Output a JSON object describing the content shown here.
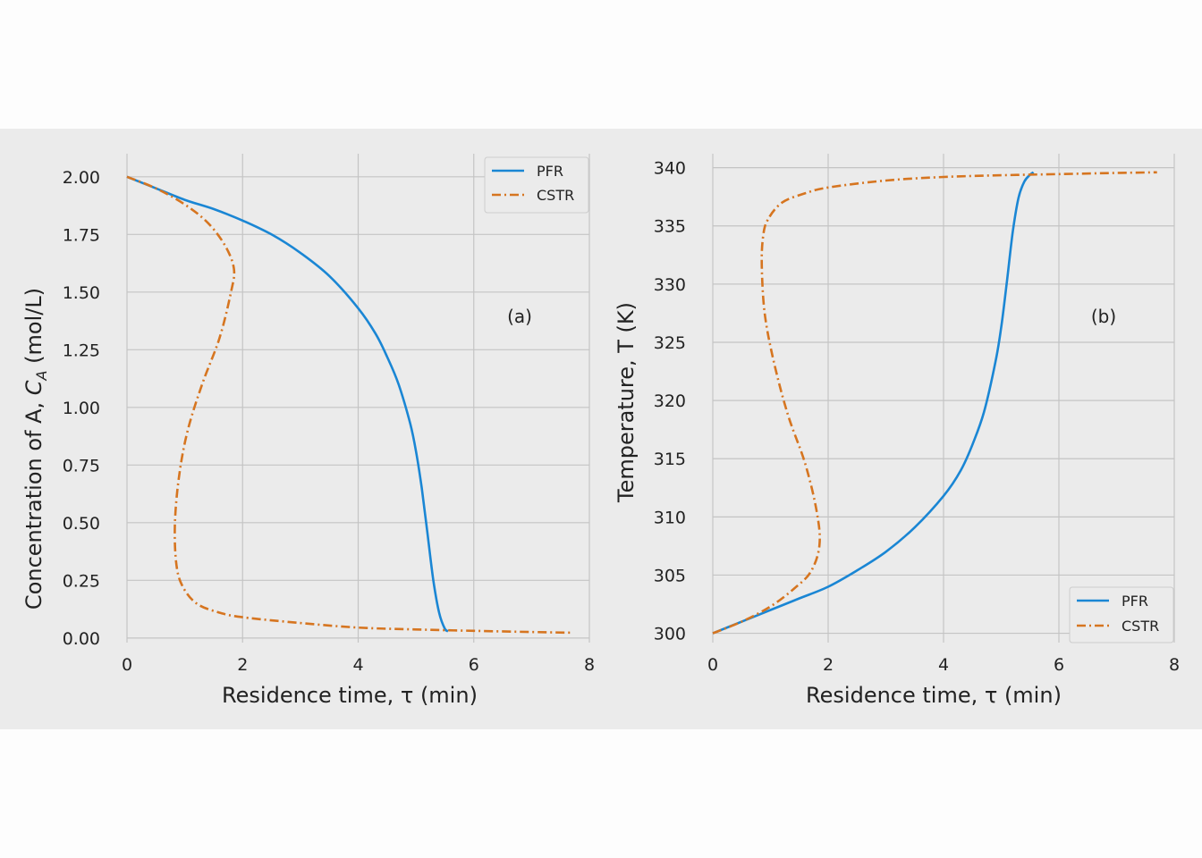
{
  "chart_data": [
    {
      "type": "line",
      "panel_label": "(a)",
      "xlabel": "Residence time, τ  (min)",
      "ylabel_main": "Concentration of A,  ",
      "ylabel_symbol": "C",
      "ylabel_sub": "A",
      "ylabel_unit": " (mol/L)",
      "xlim": [
        0,
        8
      ],
      "ylim": [
        -0.02,
        2.1
      ],
      "xticks": [
        "0",
        "2",
        "4",
        "6",
        "8"
      ],
      "yticks": [
        "0.00",
        "0.25",
        "0.50",
        "0.75",
        "1.00",
        "1.25",
        "1.50",
        "1.75",
        "2.00"
      ],
      "legend_position": "top-right",
      "series": [
        {
          "name": "PFR",
          "style": "solid",
          "color": "#1a86d4",
          "x": [
            0,
            0.5,
            1.0,
            1.5,
            2.0,
            2.5,
            3.0,
            3.5,
            4.0,
            4.3,
            4.5,
            4.7,
            4.9,
            5.0,
            5.1,
            5.2,
            5.3,
            5.4,
            5.5,
            5.56
          ],
          "y": [
            2.0,
            1.95,
            1.9,
            1.86,
            1.81,
            1.75,
            1.67,
            1.57,
            1.43,
            1.32,
            1.22,
            1.1,
            0.93,
            0.81,
            0.65,
            0.45,
            0.25,
            0.11,
            0.04,
            0.03
          ]
        },
        {
          "name": "CSTR",
          "style": "dashdot",
          "color": "#d67520",
          "x": [
            0,
            0.5,
            1.0,
            1.4,
            1.7,
            1.85,
            1.8,
            1.6,
            1.3,
            1.05,
            0.9,
            0.83,
            0.85,
            0.95,
            1.2,
            1.6,
            2.0,
            3.0,
            4.0,
            5.0,
            6.0,
            7.0,
            7.7
          ],
          "y": [
            2.0,
            1.95,
            1.88,
            1.8,
            1.7,
            1.6,
            1.5,
            1.3,
            1.1,
            0.9,
            0.7,
            0.5,
            0.33,
            0.23,
            0.15,
            0.11,
            0.09,
            0.065,
            0.045,
            0.037,
            0.031,
            0.026,
            0.023
          ]
        }
      ]
    },
    {
      "type": "line",
      "panel_label": "(b)",
      "xlabel": "Residence time, τ  (min)",
      "ylabel": "Temperature,  T (K)",
      "xlim": [
        0,
        8
      ],
      "ylim": [
        299.2,
        341.2
      ],
      "xticks": [
        "0",
        "2",
        "4",
        "6",
        "8"
      ],
      "yticks": [
        "300",
        "305",
        "310",
        "315",
        "320",
        "325",
        "330",
        "335",
        "340"
      ],
      "legend_position": "bottom-right",
      "series": [
        {
          "name": "PFR",
          "style": "solid",
          "color": "#1a86d4",
          "x": [
            0,
            0.5,
            1.0,
            1.5,
            2.0,
            2.5,
            3.0,
            3.5,
            4.0,
            4.3,
            4.5,
            4.7,
            4.9,
            5.0,
            5.1,
            5.2,
            5.3,
            5.4,
            5.5,
            5.56
          ],
          "y": [
            300.0,
            301.0,
            302.0,
            303.0,
            304.0,
            305.4,
            307.0,
            309.1,
            311.8,
            314.0,
            316.2,
            319.0,
            323.3,
            326.3,
            330.3,
            334.5,
            337.4,
            338.8,
            339.4,
            339.6
          ]
        },
        {
          "name": "CSTR",
          "style": "dashdot",
          "color": "#d67520",
          "x": [
            0,
            0.5,
            1.0,
            1.4,
            1.7,
            1.85,
            1.8,
            1.6,
            1.3,
            1.05,
            0.9,
            0.85,
            0.87,
            0.95,
            1.2,
            1.6,
            2.0,
            3.0,
            4.0,
            5.0,
            6.0,
            7.0,
            7.7
          ],
          "y": [
            300.0,
            301.0,
            302.3,
            303.8,
            305.3,
            307.6,
            310.5,
            314.6,
            318.8,
            323.5,
            327.5,
            331.5,
            334.0,
            335.5,
            337.0,
            337.8,
            338.3,
            338.9,
            339.2,
            339.35,
            339.45,
            339.55,
            339.6
          ]
        }
      ]
    }
  ]
}
